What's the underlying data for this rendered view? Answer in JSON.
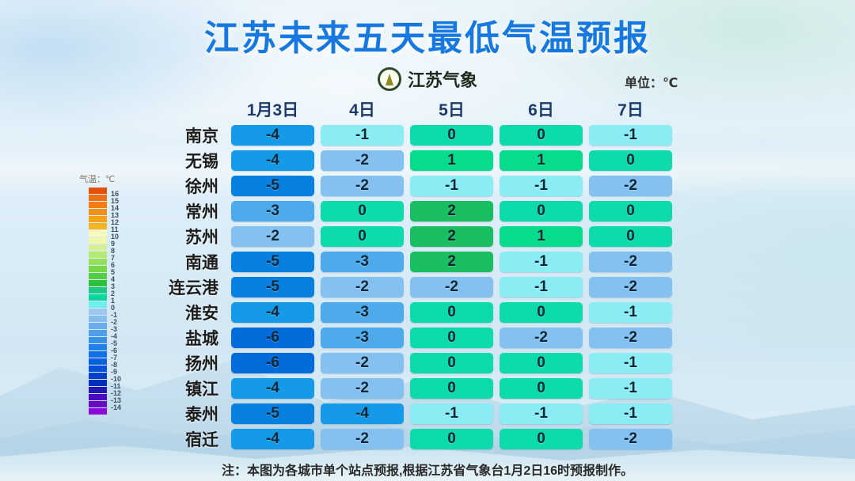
{
  "header": {
    "title": "江苏未来五天最低气温预报",
    "logo_text": "江苏气象",
    "unit_label": "单位：℃"
  },
  "footer": {
    "note": "注：本图为各城市单个站点预报,根据江苏省气象台1月2日16时预报制作。"
  },
  "chart_data": {
    "type": "heatmap",
    "title": "江苏未来五天最低气温预报",
    "unit": "℃",
    "columns": [
      "1月3日",
      "4日",
      "5日",
      "6日",
      "7日"
    ],
    "rows": [
      {
        "city": "南京",
        "temps": [
          -4,
          -1,
          0,
          0,
          -1
        ]
      },
      {
        "city": "无锡",
        "temps": [
          -4,
          -2,
          1,
          1,
          0
        ]
      },
      {
        "city": "徐州",
        "temps": [
          -5,
          -2,
          -1,
          -1,
          -2
        ]
      },
      {
        "city": "常州",
        "temps": [
          -3,
          0,
          2,
          0,
          0
        ]
      },
      {
        "city": "苏州",
        "temps": [
          -2,
          0,
          2,
          1,
          0
        ]
      },
      {
        "city": "南通",
        "temps": [
          -5,
          -3,
          2,
          -1,
          -2
        ]
      },
      {
        "city": "连云港",
        "temps": [
          -5,
          -2,
          -2,
          -1,
          -2
        ]
      },
      {
        "city": "淮安",
        "temps": [
          -4,
          -3,
          0,
          0,
          -1
        ]
      },
      {
        "city": "盐城",
        "temps": [
          -6,
          -3,
          0,
          -2,
          -2
        ]
      },
      {
        "city": "扬州",
        "temps": [
          -6,
          -2,
          0,
          0,
          -1
        ]
      },
      {
        "city": "镇江",
        "temps": [
          -4,
          -2,
          0,
          0,
          -1
        ]
      },
      {
        "city": "泰州",
        "temps": [
          -5,
          -4,
          -1,
          -1,
          -1
        ]
      },
      {
        "city": "宿迁",
        "temps": [
          -4,
          -2,
          0,
          0,
          -2
        ]
      }
    ],
    "color_scale": {
      "2": "#19BE61",
      "1": "#07DC8C",
      "0": "#0EDBAC",
      "-1": "#8BEDF3",
      "-2": "#84C0F0",
      "-3": "#4FAAEC",
      "-4": "#149AE8",
      "-5": "#0880E0",
      "-6": "#046CDA"
    },
    "legend": {
      "title": "气温：℃",
      "range": [
        16,
        -14
      ],
      "items": [
        {
          "label": "16",
          "color": "#E25009"
        },
        {
          "label": "15",
          "color": "#EE6E12"
        },
        {
          "label": "14",
          "color": "#F07E14"
        },
        {
          "label": "13",
          "color": "#F29016"
        },
        {
          "label": "12",
          "color": "#F4A21A"
        },
        {
          "label": "11",
          "color": "#F6B41E"
        },
        {
          "label": "10",
          "color": "#FAFAC0"
        },
        {
          "label": "9",
          "color": "#F0F8B0"
        },
        {
          "label": "8",
          "color": "#D6F098"
        },
        {
          "label": "7",
          "color": "#B6E878"
        },
        {
          "label": "6",
          "color": "#96E05C"
        },
        {
          "label": "5",
          "color": "#76D848"
        },
        {
          "label": "4",
          "color": "#52CE40"
        },
        {
          "label": "3",
          "color": "#30C03C"
        },
        {
          "label": "2",
          "color": "#18CA86"
        },
        {
          "label": "1",
          "color": "#0ED49E"
        },
        {
          "label": "0",
          "color": "#70EEEE"
        },
        {
          "label": "-1",
          "color": "#9CC8F0"
        },
        {
          "label": "-2",
          "color": "#88BCEE"
        },
        {
          "label": "-3",
          "color": "#68ACEC"
        },
        {
          "label": "-4",
          "color": "#4E9EE8"
        },
        {
          "label": "-5",
          "color": "#3890E8"
        },
        {
          "label": "-6",
          "color": "#2080E6"
        },
        {
          "label": "-7",
          "color": "#1070E4"
        },
        {
          "label": "-8",
          "color": "#0860DC"
        },
        {
          "label": "-9",
          "color": "#0550D4"
        },
        {
          "label": "-10",
          "color": "#0440C8"
        },
        {
          "label": "-11",
          "color": "#0330B8"
        },
        {
          "label": "-12",
          "color": "#2018B0"
        },
        {
          "label": "-13",
          "color": "#4A0AC0"
        },
        {
          "label": "-14",
          "color": "#6A08C8"
        },
        {
          "label": "",
          "color": "#8A0AD8"
        }
      ]
    }
  }
}
